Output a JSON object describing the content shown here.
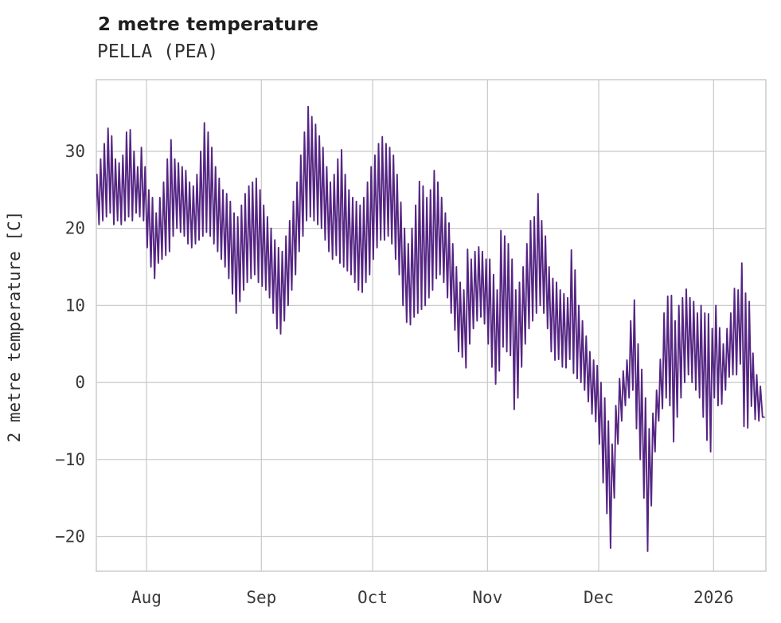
{
  "header": {
    "title": "2 metre temperature",
    "subtitle": "PELLA (PEA)"
  },
  "chart_data": {
    "type": "line",
    "title": "2 metre temperature",
    "subtitle": "PELLA (PEA)",
    "ylabel": "2 metre temperature [C]",
    "y_ticks": [
      30,
      20,
      10,
      0,
      -10,
      -20
    ],
    "ylim": [
      -24.5,
      39.3
    ],
    "x_tick_labels": [
      "Aug",
      "Sep",
      "Oct",
      "Nov",
      "Dec",
      "2026"
    ],
    "x_tick_days": [
      14,
      45,
      75,
      106,
      136,
      167
    ],
    "xlim_days": [
      0.47,
      181.1
    ],
    "grid": true,
    "legend": "none",
    "line_color": "#552583",
    "grid_color": "#cccccc",
    "series_name": "2 metre temperature at PELLA (PEA)",
    "x_description": "days, day 0 = chart start (~2 weeks before Aug), diurnal min/max per day",
    "daily_envelope": [
      [
        20,
        27
      ],
      [
        20.5,
        29
      ],
      [
        21,
        31
      ],
      [
        21.5,
        33
      ],
      [
        22,
        32
      ],
      [
        20.5,
        29
      ],
      [
        21,
        28.5
      ],
      [
        20.5,
        29.5
      ],
      [
        21,
        32.5
      ],
      [
        21.5,
        32.8
      ],
      [
        21,
        30
      ],
      [
        22,
        28
      ],
      [
        21.5,
        30.5
      ],
      [
        21,
        28
      ],
      [
        17.5,
        25
      ],
      [
        15,
        24
      ],
      [
        13.5,
        22
      ],
      [
        15.5,
        24
      ],
      [
        16,
        26
      ],
      [
        16.5,
        29
      ],
      [
        17,
        31.5
      ],
      [
        19,
        29
      ],
      [
        20,
        28.5
      ],
      [
        19.5,
        28
      ],
      [
        19,
        27.5
      ],
      [
        18,
        26
      ],
      [
        17.5,
        25.5
      ],
      [
        18,
        27
      ],
      [
        18.5,
        30
      ],
      [
        19,
        33.7
      ],
      [
        19.5,
        32.5
      ],
      [
        19,
        30.5
      ],
      [
        18,
        28
      ],
      [
        17,
        26.5
      ],
      [
        16,
        25
      ],
      [
        15,
        24.5
      ],
      [
        13.5,
        23.5
      ],
      [
        11.5,
        22
      ],
      [
        9,
        21.5
      ],
      [
        10.5,
        23
      ],
      [
        12,
        24.5
      ],
      [
        13,
        25.5
      ],
      [
        13.5,
        26
      ],
      [
        14,
        26.5
      ],
      [
        13,
        25
      ],
      [
        12.5,
        23
      ],
      [
        12,
        21.5
      ],
      [
        11,
        20
      ],
      [
        9,
        18.5
      ],
      [
        7,
        17.5
      ],
      [
        6.3,
        17
      ],
      [
        8,
        19
      ],
      [
        10,
        21
      ],
      [
        12,
        23.5
      ],
      [
        14,
        26
      ],
      [
        17,
        29.5
      ],
      [
        19,
        32.5
      ],
      [
        21,
        35.8
      ],
      [
        21.5,
        34.5
      ],
      [
        21,
        33.5
      ],
      [
        20.5,
        32
      ],
      [
        20,
        30.5
      ],
      [
        18.5,
        28
      ],
      [
        17,
        26
      ],
      [
        16,
        27
      ],
      [
        16.5,
        29
      ],
      [
        15.5,
        30.2
      ],
      [
        15,
        27
      ],
      [
        14.5,
        25
      ],
      [
        14,
        24
      ],
      [
        13,
        23.5
      ],
      [
        12,
        23
      ],
      [
        11.7,
        24
      ],
      [
        13,
        26
      ],
      [
        14,
        28
      ],
      [
        16,
        29.5
      ],
      [
        17.5,
        31
      ],
      [
        18.5,
        31.9
      ],
      [
        18.5,
        31
      ],
      [
        19,
        30.5
      ],
      [
        18,
        29.5
      ],
      [
        16,
        27
      ],
      [
        14,
        23.4
      ],
      [
        10,
        20
      ],
      [
        7.8,
        18
      ],
      [
        7.5,
        20
      ],
      [
        8.5,
        23
      ],
      [
        9,
        26.1
      ],
      [
        9.5,
        25.5
      ],
      [
        10,
        24
      ],
      [
        11,
        25
      ],
      [
        12,
        27.5
      ],
      [
        13.5,
        26
      ],
      [
        14,
        24
      ],
      [
        13,
        22
      ],
      [
        11,
        20.7
      ],
      [
        9,
        18
      ],
      [
        6.8,
        15
      ],
      [
        4,
        13
      ],
      [
        3.3,
        12
      ],
      [
        1.9,
        17.3
      ],
      [
        5,
        16
      ],
      [
        7,
        17
      ],
      [
        8,
        17.6
      ],
      [
        8.5,
        17
      ],
      [
        7.6,
        16
      ],
      [
        5,
        16
      ],
      [
        2,
        14
      ],
      [
        -0.2,
        12
      ],
      [
        1.5,
        19.7
      ],
      [
        4.6,
        19
      ],
      [
        4,
        18
      ],
      [
        3.5,
        16
      ],
      [
        -3.5,
        12
      ],
      [
        -2,
        13
      ],
      [
        2,
        15
      ],
      [
        5,
        18
      ],
      [
        7,
        21
      ],
      [
        8,
        21.5
      ],
      [
        9,
        24.5
      ],
      [
        10,
        21
      ],
      [
        9,
        19
      ],
      [
        7,
        15
      ],
      [
        4,
        13.5
      ],
      [
        2.9,
        13
      ],
      [
        3,
        12
      ],
      [
        2,
        11.5
      ],
      [
        1.9,
        11
      ],
      [
        3,
        17.2
      ],
      [
        1.2,
        14.6
      ],
      [
        0.5,
        10
      ],
      [
        0,
        8
      ],
      [
        -1,
        6
      ],
      [
        -2.5,
        4
      ],
      [
        -4.1,
        2.9
      ],
      [
        -5.1,
        2.2
      ],
      [
        -8,
        0
      ],
      [
        -13,
        -2
      ],
      [
        -17,
        -5
      ],
      [
        -21.5,
        -8
      ],
      [
        -15,
        -3
      ],
      [
        -8,
        0.5
      ],
      [
        -5,
        1.5
      ],
      [
        -3,
        2.9
      ],
      [
        -2,
        8
      ],
      [
        -1,
        10.7
      ],
      [
        -6,
        5
      ],
      [
        -10,
        1.7
      ],
      [
        -15,
        -2
      ],
      [
        -21.9,
        -6
      ],
      [
        -16,
        -4
      ],
      [
        -9,
        -1
      ],
      [
        -5,
        3
      ],
      [
        -3.4,
        9
      ],
      [
        -2,
        11.2
      ],
      [
        -3,
        11.3
      ],
      [
        -7.7,
        8
      ],
      [
        -4.5,
        10
      ],
      [
        -2,
        11
      ],
      [
        0,
        12.1
      ],
      [
        1,
        11
      ],
      [
        0,
        10.5
      ],
      [
        -1,
        9
      ],
      [
        -2,
        10
      ],
      [
        -4.5,
        9
      ],
      [
        -7.5,
        8.9
      ],
      [
        -9,
        7
      ],
      [
        -2,
        10
      ],
      [
        -3,
        7.1
      ],
      [
        -2.8,
        5
      ],
      [
        -1,
        7
      ],
      [
        0.7,
        9
      ],
      [
        1,
        12.2
      ],
      [
        1,
        12
      ],
      [
        2.4,
        15.5
      ],
      [
        -5.7,
        11.6
      ],
      [
        -5.9,
        10.5
      ],
      [
        -3.1,
        3.8
      ],
      [
        -4.8,
        1
      ],
      [
        -5,
        -0.5
      ],
      [
        -4.5,
        -4.5
      ]
    ]
  }
}
